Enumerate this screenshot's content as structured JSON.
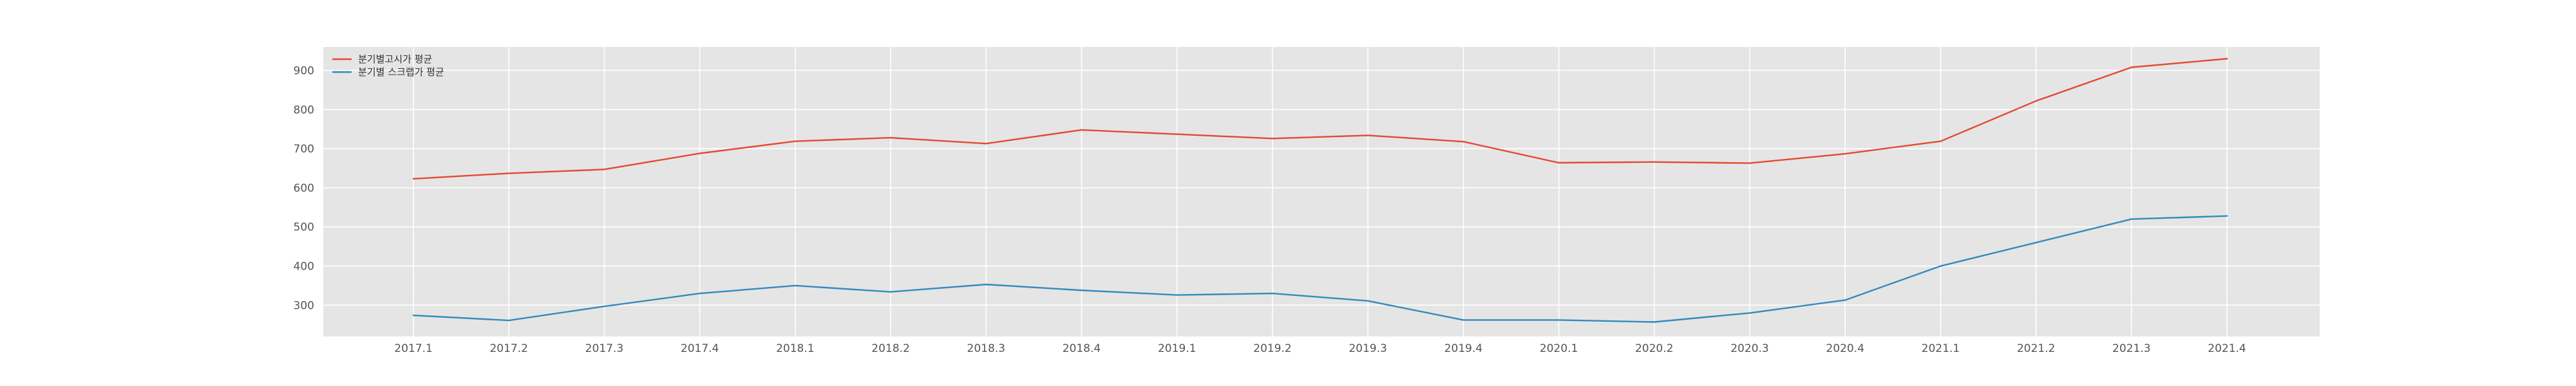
{
  "chart_data": {
    "type": "line",
    "title": "",
    "xlabel": "",
    "ylabel": "",
    "categories": [
      "2017.1",
      "2017.2",
      "2017.3",
      "2017.4",
      "2018.1",
      "2018.2",
      "2018.3",
      "2018.4",
      "2019.1",
      "2019.2",
      "2019.3",
      "2019.4",
      "2020.1",
      "2020.2",
      "2020.3",
      "2020.4",
      "2021.1",
      "2021.2",
      "2021.3",
      "2021.4"
    ],
    "y_ticks": [
      300,
      400,
      500,
      600,
      700,
      800,
      900
    ],
    "ylim": [
      220,
      960
    ],
    "grid": true,
    "legend_position": "top-left",
    "background": "#e5e5e5",
    "series": [
      {
        "name": "분기별고시가 평균",
        "color": "#e24a33",
        "values": [
          623,
          637,
          647,
          688,
          719,
          728,
          713,
          748,
          737,
          726,
          734,
          718,
          664,
          666,
          663,
          687,
          719,
          822,
          908,
          930
        ]
      },
      {
        "name": "분기별 스크랩가 평균",
        "color": "#348abd",
        "values": [
          274,
          261,
          297,
          330,
          350,
          334,
          353,
          338,
          326,
          330,
          311,
          262,
          262,
          257,
          280,
          313,
          400,
          460,
          520,
          528
        ]
      }
    ]
  }
}
